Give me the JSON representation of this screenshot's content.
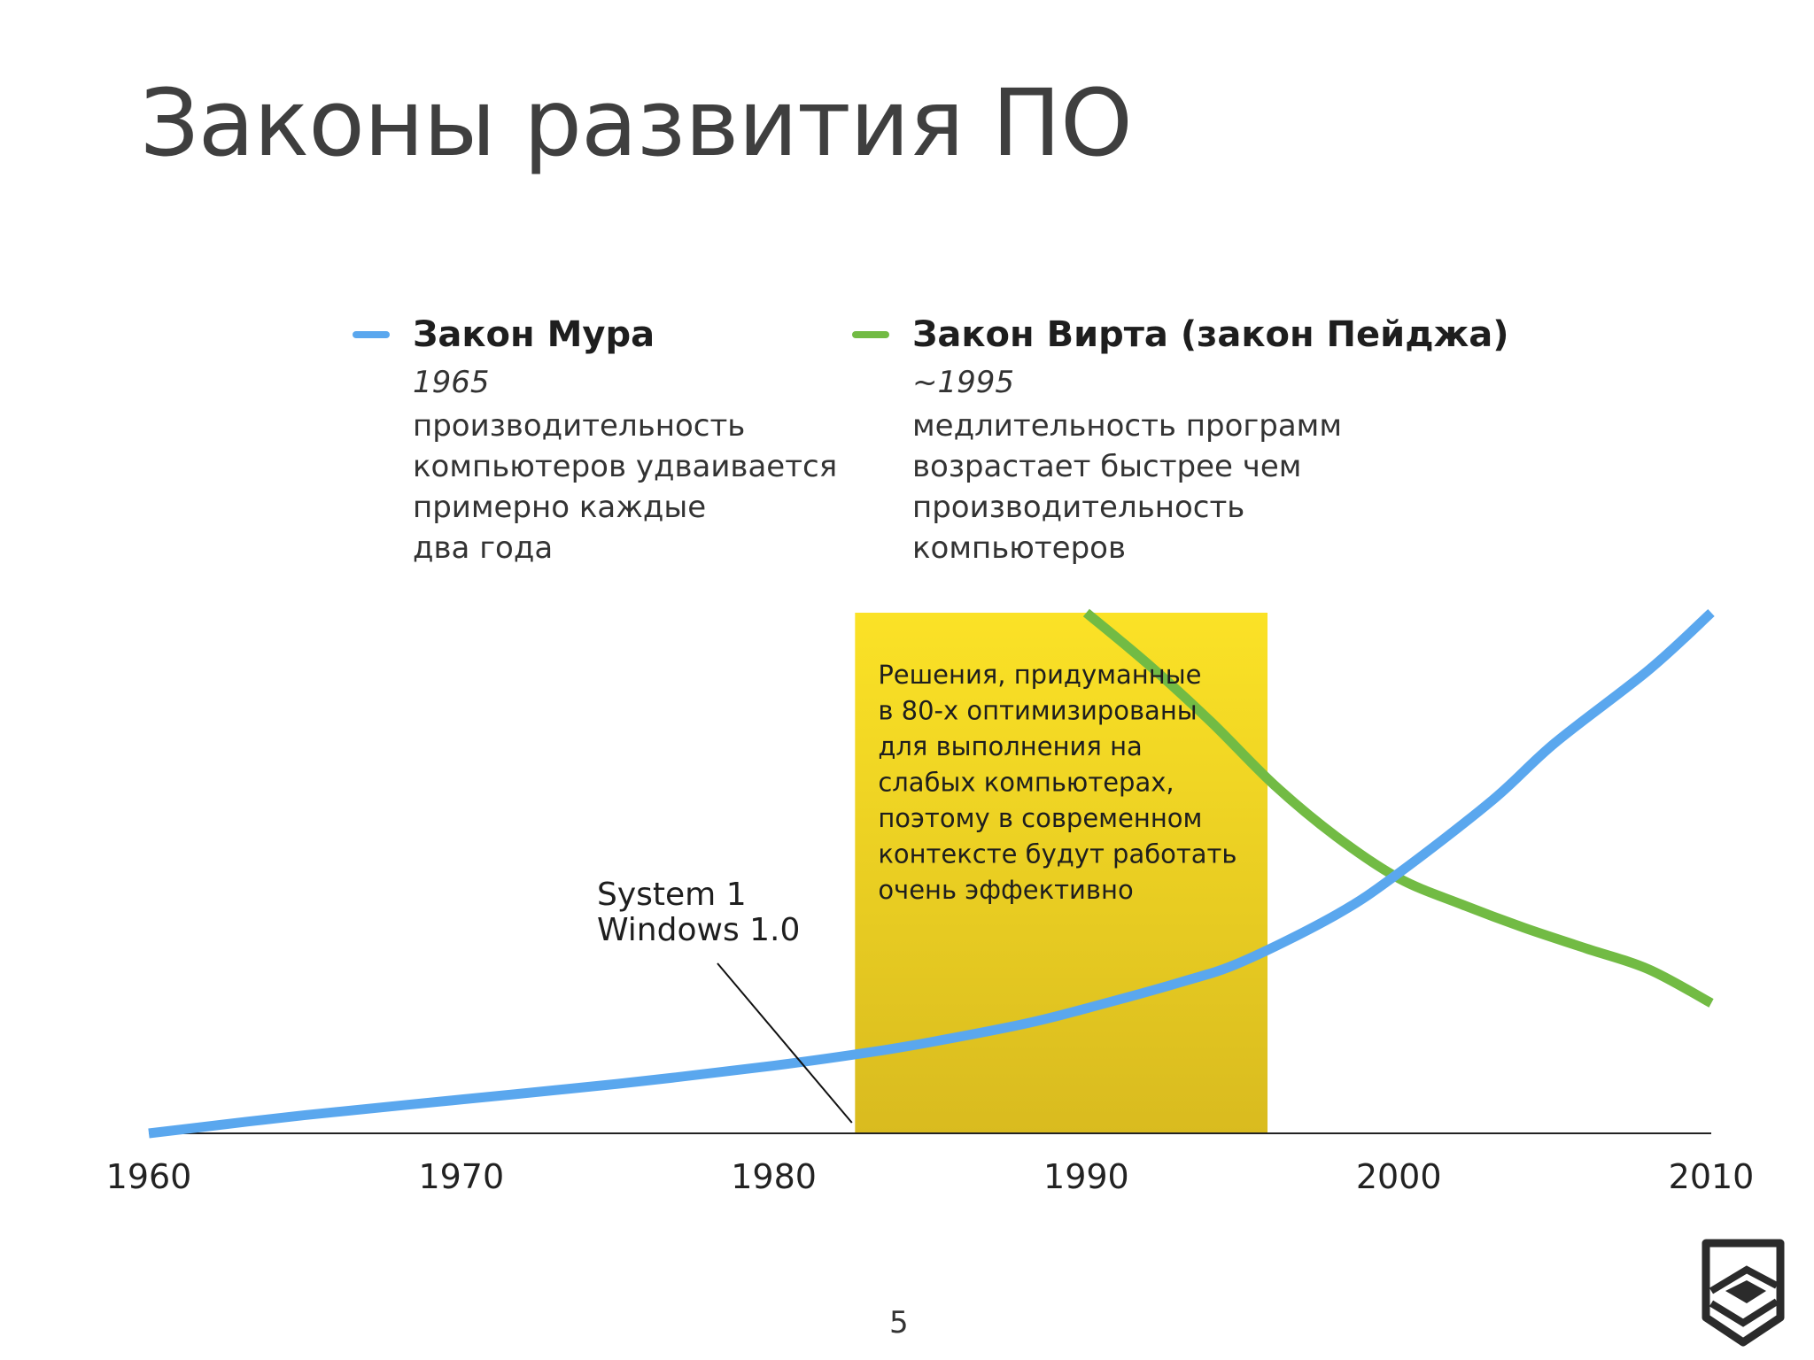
{
  "title": "Законы развития ПО",
  "page_number": "5",
  "colors": {
    "moore": "#5aa7ee",
    "wirth": "#72bb44",
    "highlight": "#f4d41e",
    "axis": "#222222"
  },
  "legend": [
    {
      "name": "Закон Мура",
      "year": "1965",
      "desc": [
        "производительность",
        "компьютеров удваивается",
        "примерно каждые",
        "два года"
      ]
    },
    {
      "name": "Закон Вирта (закон Пейджа)",
      "year": "~1995",
      "desc": [
        "медлительность программ",
        "возрастает быстрее чем",
        "производительность",
        "компьютеров"
      ]
    }
  ],
  "chart_data": {
    "type": "line",
    "x_ticks": [
      "1960",
      "1970",
      "1980",
      "1990",
      "2000",
      "2010"
    ],
    "xlim": [
      1960,
      2010
    ],
    "ylim": [
      0,
      100
    ],
    "series": [
      {
        "name": "Закон Мура",
        "color": "#5aa7ee",
        "x": [
          1960,
          1965,
          1970,
          1975,
          1980,
          1983,
          1985,
          1988,
          1990,
          1993,
          1995,
          1998,
          2000,
          2003,
          2005,
          2008,
          2010
        ],
        "y": [
          0,
          3.5,
          6.5,
          9.5,
          13,
          15.5,
          17.5,
          21,
          24,
          29,
          33,
          42,
          50,
          64,
          75,
          89,
          100
        ]
      },
      {
        "name": "Закон Вирта (закон Пейджа)",
        "color": "#72bb44",
        "x": [
          1990,
          1992,
          1994,
          1996,
          1998,
          2000,
          2002,
          2004,
          2006,
          2008,
          2010
        ],
        "y": [
          100,
          90,
          79,
          67,
          57,
          49,
          44,
          39.5,
          35.5,
          31.5,
          25
        ]
      }
    ],
    "highlight": {
      "x_start": 1982.6,
      "x_end": 1995.8,
      "color": "#f4d41e",
      "text": [
        "Решения, придуманные",
        "в 80-х оптимизированы",
        "для выполнения на",
        "слабых компьютерах,",
        "поэтому в современном",
        "контексте будут работать",
        "очень эффективно"
      ]
    },
    "annotations": [
      {
        "text": [
          "System 1",
          "Windows 1.0"
        ],
        "x": 1982.5
      }
    ]
  }
}
